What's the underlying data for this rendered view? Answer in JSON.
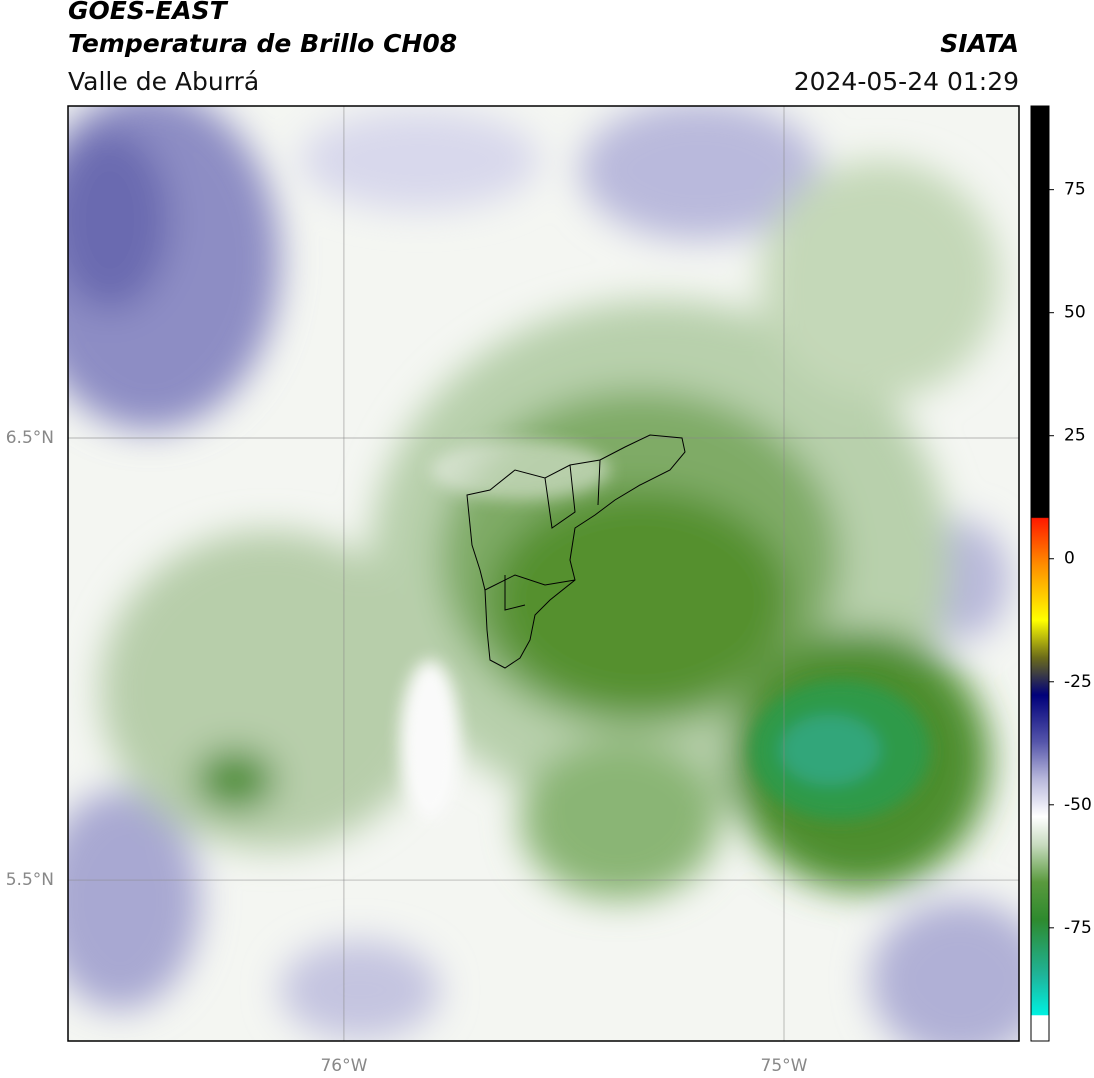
{
  "chart_data": {
    "type": "map",
    "title": "GOES-EAST",
    "subtitle": "Temperatura de Brillo CH08",
    "region": "Valle de Aburrá",
    "source": "SIATA",
    "timestamp": "2024-05-24 01:29",
    "xlim": [
      -76.627,
      -74.466
    ],
    "ylim": [
      5.136,
      7.251
    ],
    "xticks": [
      {
        "value": -76,
        "label": "76°W"
      },
      {
        "value": -75,
        "label": "75°W"
      }
    ],
    "yticks": [
      {
        "value": 6.5,
        "label": "6.5°N"
      },
      {
        "value": 5.5,
        "label": "5.5°N"
      }
    ],
    "grid": true,
    "colorbar": {
      "lim": [
        -98,
        92
      ],
      "ticks": [
        75,
        50,
        25,
        0,
        -25,
        -50,
        -75
      ]
    }
  }
}
